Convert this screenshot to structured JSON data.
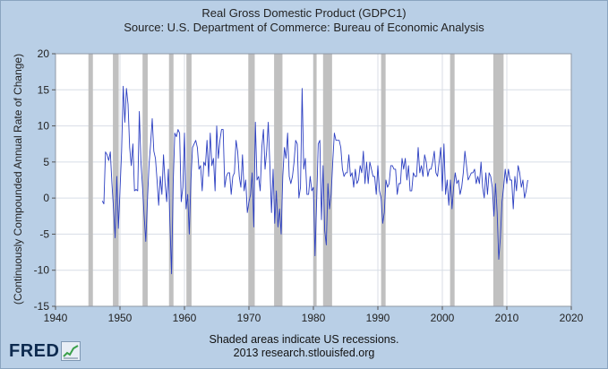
{
  "chart_data": {
    "type": "line",
    "title": "Real Gross Domestic Product (GDPC1)",
    "subtitle": "Source: U.S. Department of Commerce: Bureau of Economic Analysis",
    "xlabel": "",
    "ylabel": "(Continuously Compounded Annual Rate of Change)",
    "xlim": [
      1940,
      2020
    ],
    "ylim": [
      -15,
      20
    ],
    "x_ticks": [
      1940,
      1950,
      1960,
      1970,
      1980,
      1990,
      2000,
      2010,
      2020
    ],
    "y_ticks": [
      -15,
      -10,
      -5,
      0,
      5,
      10,
      15,
      20
    ],
    "grid": true,
    "colors": {
      "line": "#2c3fc1",
      "recession": "#c0c0c0",
      "plot_bg": "#ffffff",
      "grid": "#d8dde6"
    },
    "recessions": [
      [
        1945.1,
        1945.8
      ],
      [
        1948.9,
        1949.8
      ],
      [
        1953.5,
        1954.3
      ],
      [
        1957.6,
        1958.3
      ],
      [
        1960.3,
        1961.1
      ],
      [
        1969.9,
        1970.9
      ],
      [
        1973.9,
        1975.2
      ],
      [
        1980.0,
        1980.5
      ],
      [
        1981.5,
        1982.9
      ],
      [
        1990.5,
        1991.2
      ],
      [
        2001.2,
        2001.9
      ],
      [
        2007.9,
        2009.5
      ]
    ],
    "series": [
      {
        "values": [
          [
            1947.25,
            -0.4
          ],
          [
            1947.5,
            -0.8
          ],
          [
            1947.75,
            6.4
          ],
          [
            1948.0,
            6.0
          ],
          [
            1948.25,
            5.2
          ],
          [
            1948.5,
            6.4
          ],
          [
            1948.75,
            2.0
          ],
          [
            1949.0,
            -1.5
          ],
          [
            1949.25,
            -5.5
          ],
          [
            1949.5,
            3.0
          ],
          [
            1949.75,
            -4.2
          ],
          [
            1950.0,
            1.0
          ],
          [
            1950.25,
            6.5
          ],
          [
            1950.5,
            15.5
          ],
          [
            1950.75,
            10.5
          ],
          [
            1951.0,
            15.2
          ],
          [
            1951.25,
            13.0
          ],
          [
            1951.5,
            7.0
          ],
          [
            1951.75,
            4.5
          ],
          [
            1952.0,
            7.5
          ],
          [
            1952.25,
            1.0
          ],
          [
            1952.5,
            1.2
          ],
          [
            1952.75,
            1.0
          ],
          [
            1953.0,
            12.0
          ],
          [
            1953.25,
            5.0
          ],
          [
            1953.5,
            1.5
          ],
          [
            1953.75,
            -2.5
          ],
          [
            1954.0,
            -6.0
          ],
          [
            1954.25,
            -0.5
          ],
          [
            1954.5,
            4.5
          ],
          [
            1954.75,
            7.5
          ],
          [
            1955.0,
            11.0
          ],
          [
            1955.25,
            6.5
          ],
          [
            1955.5,
            5.5
          ],
          [
            1955.75,
            2.5
          ],
          [
            1956.0,
            -1.0
          ],
          [
            1956.25,
            3.0
          ],
          [
            1956.5,
            0.5
          ],
          [
            1956.75,
            6.0
          ],
          [
            1957.0,
            2.0
          ],
          [
            1957.25,
            -0.5
          ],
          [
            1957.5,
            4.0
          ],
          [
            1957.75,
            -3.5
          ],
          [
            1958.0,
            -10.5
          ],
          [
            1958.25,
            2.0
          ],
          [
            1958.5,
            9.0
          ],
          [
            1958.75,
            8.5
          ],
          [
            1959.0,
            9.5
          ],
          [
            1959.25,
            9.0
          ],
          [
            1959.5,
            -0.5
          ],
          [
            1959.75,
            1.5
          ],
          [
            1960.0,
            9.0
          ],
          [
            1960.25,
            -1.5
          ],
          [
            1960.5,
            0.5
          ],
          [
            1960.75,
            -5.0
          ],
          [
            1961.0,
            2.5
          ],
          [
            1961.25,
            7.0
          ],
          [
            1961.5,
            7.5
          ],
          [
            1961.75,
            8.0
          ],
          [
            1962.0,
            7.0
          ],
          [
            1962.25,
            4.0
          ],
          [
            1962.5,
            4.5
          ],
          [
            1962.75,
            1.0
          ],
          [
            1963.0,
            5.0
          ],
          [
            1963.25,
            4.5
          ],
          [
            1963.5,
            8.0
          ],
          [
            1963.75,
            3.0
          ],
          [
            1964.0,
            9.0
          ],
          [
            1964.25,
            4.5
          ],
          [
            1964.5,
            5.5
          ],
          [
            1964.75,
            1.0
          ],
          [
            1965.0,
            10.0
          ],
          [
            1965.25,
            5.5
          ],
          [
            1965.5,
            8.0
          ],
          [
            1965.75,
            9.5
          ],
          [
            1966.0,
            9.5
          ],
          [
            1966.25,
            1.5
          ],
          [
            1966.5,
            3.0
          ],
          [
            1966.75,
            3.5
          ],
          [
            1967.0,
            3.5
          ],
          [
            1967.25,
            0.5
          ],
          [
            1967.5,
            3.0
          ],
          [
            1967.75,
            3.5
          ],
          [
            1968.0,
            8.0
          ],
          [
            1968.25,
            6.5
          ],
          [
            1968.5,
            3.0
          ],
          [
            1968.75,
            1.5
          ],
          [
            1969.0,
            6.0
          ],
          [
            1969.25,
            1.0
          ],
          [
            1969.5,
            2.5
          ],
          [
            1969.75,
            -2.0
          ],
          [
            1970.0,
            -0.5
          ],
          [
            1970.25,
            0.5
          ],
          [
            1970.5,
            3.5
          ],
          [
            1970.75,
            -4.0
          ],
          [
            1971.0,
            10.5
          ],
          [
            1971.25,
            2.5
          ],
          [
            1971.5,
            3.0
          ],
          [
            1971.75,
            1.0
          ],
          [
            1972.0,
            7.0
          ],
          [
            1972.25,
            9.5
          ],
          [
            1972.5,
            4.0
          ],
          [
            1972.75,
            6.5
          ],
          [
            1973.0,
            10.5
          ],
          [
            1973.25,
            4.5
          ],
          [
            1973.5,
            -2.0
          ],
          [
            1973.75,
            4.0
          ],
          [
            1974.0,
            -3.5
          ],
          [
            1974.25,
            1.0
          ],
          [
            1974.5,
            -4.0
          ],
          [
            1974.75,
            -1.5
          ],
          [
            1975.0,
            -5.0
          ],
          [
            1975.25,
            3.0
          ],
          [
            1975.5,
            7.0
          ],
          [
            1975.75,
            5.5
          ],
          [
            1976.0,
            9.0
          ],
          [
            1976.25,
            3.0
          ],
          [
            1976.5,
            2.0
          ],
          [
            1976.75,
            3.0
          ],
          [
            1977.0,
            5.0
          ],
          [
            1977.25,
            8.0
          ],
          [
            1977.5,
            7.5
          ],
          [
            1977.75,
            0.0
          ],
          [
            1978.0,
            1.5
          ],
          [
            1978.25,
            15.2
          ],
          [
            1978.5,
            4.0
          ],
          [
            1978.75,
            5.5
          ],
          [
            1979.0,
            0.5
          ],
          [
            1979.25,
            0.5
          ],
          [
            1979.5,
            3.0
          ],
          [
            1979.75,
            1.0
          ],
          [
            1980.0,
            1.5
          ],
          [
            1980.25,
            -8.0
          ],
          [
            1980.5,
            -0.5
          ],
          [
            1980.75,
            7.5
          ],
          [
            1981.0,
            8.0
          ],
          [
            1981.25,
            -3.0
          ],
          [
            1981.5,
            4.5
          ],
          [
            1981.75,
            -4.5
          ],
          [
            1982.0,
            -6.5
          ],
          [
            1982.25,
            2.0
          ],
          [
            1982.5,
            -1.5
          ],
          [
            1982.75,
            0.5
          ],
          [
            1983.0,
            5.0
          ],
          [
            1983.25,
            9.0
          ],
          [
            1983.5,
            8.0
          ],
          [
            1983.75,
            8.0
          ],
          [
            1984.0,
            8.0
          ],
          [
            1984.25,
            7.0
          ],
          [
            1984.5,
            4.0
          ],
          [
            1984.75,
            3.0
          ],
          [
            1985.0,
            3.5
          ],
          [
            1985.25,
            3.5
          ],
          [
            1985.5,
            6.0
          ],
          [
            1985.75,
            3.0
          ],
          [
            1986.0,
            3.5
          ],
          [
            1986.25,
            1.5
          ],
          [
            1986.5,
            4.0
          ],
          [
            1986.75,
            2.0
          ],
          [
            1987.0,
            2.5
          ],
          [
            1987.25,
            4.5
          ],
          [
            1987.5,
            3.5
          ],
          [
            1987.75,
            6.5
          ],
          [
            1988.0,
            2.0
          ],
          [
            1988.25,
            5.0
          ],
          [
            1988.5,
            2.0
          ],
          [
            1988.75,
            5.0
          ],
          [
            1989.0,
            4.0
          ],
          [
            1989.25,
            3.0
          ],
          [
            1989.5,
            3.0
          ],
          [
            1989.75,
            0.5
          ],
          [
            1990.0,
            4.5
          ],
          [
            1990.25,
            1.0
          ],
          [
            1990.5,
            0.0
          ],
          [
            1990.75,
            -3.5
          ],
          [
            1991.0,
            -2.0
          ],
          [
            1991.25,
            2.5
          ],
          [
            1991.5,
            1.5
          ],
          [
            1991.75,
            2.0
          ],
          [
            1992.0,
            4.5
          ],
          [
            1992.25,
            4.5
          ],
          [
            1992.5,
            4.0
          ],
          [
            1992.75,
            4.0
          ],
          [
            1993.0,
            0.5
          ],
          [
            1993.25,
            2.0
          ],
          [
            1993.5,
            2.0
          ],
          [
            1993.75,
            5.5
          ],
          [
            1994.0,
            4.0
          ],
          [
            1994.25,
            5.5
          ],
          [
            1994.5,
            2.5
          ],
          [
            1994.75,
            4.5
          ],
          [
            1995.0,
            1.0
          ],
          [
            1995.25,
            1.0
          ],
          [
            1995.5,
            3.5
          ],
          [
            1995.75,
            3.0
          ],
          [
            1996.0,
            3.0
          ],
          [
            1996.25,
            7.0
          ],
          [
            1996.5,
            3.5
          ],
          [
            1996.75,
            4.5
          ],
          [
            1997.0,
            3.0
          ],
          [
            1997.25,
            6.0
          ],
          [
            1997.5,
            5.0
          ],
          [
            1997.75,
            3.0
          ],
          [
            1998.0,
            4.0
          ],
          [
            1998.25,
            4.0
          ],
          [
            1998.5,
            5.0
          ],
          [
            1998.75,
            6.5
          ],
          [
            1999.0,
            3.5
          ],
          [
            1999.25,
            3.0
          ],
          [
            1999.5,
            5.0
          ],
          [
            1999.75,
            7.0
          ],
          [
            2000.0,
            1.0
          ],
          [
            2000.25,
            7.5
          ],
          [
            2000.5,
            0.5
          ],
          [
            2000.75,
            2.5
          ],
          [
            2001.0,
            -1.0
          ],
          [
            2001.25,
            2.5
          ],
          [
            2001.5,
            -1.5
          ],
          [
            2001.75,
            1.5
          ],
          [
            2002.0,
            3.5
          ],
          [
            2002.25,
            2.0
          ],
          [
            2002.5,
            2.5
          ],
          [
            2002.75,
            0.5
          ],
          [
            2003.0,
            1.5
          ],
          [
            2003.25,
            3.5
          ],
          [
            2003.5,
            6.5
          ],
          [
            2003.75,
            4.5
          ],
          [
            2004.0,
            2.5
          ],
          [
            2004.25,
            3.0
          ],
          [
            2004.5,
            3.5
          ],
          [
            2004.75,
            3.5
          ],
          [
            2005.0,
            4.0
          ],
          [
            2005.25,
            2.0
          ],
          [
            2005.5,
            3.0
          ],
          [
            2005.75,
            2.0
          ],
          [
            2006.0,
            5.0
          ],
          [
            2006.25,
            1.5
          ],
          [
            2006.5,
            0.0
          ],
          [
            2006.75,
            3.5
          ],
          [
            2007.0,
            0.5
          ],
          [
            2007.25,
            3.5
          ],
          [
            2007.5,
            3.0
          ],
          [
            2007.75,
            1.5
          ],
          [
            2008.0,
            -2.5
          ],
          [
            2008.25,
            2.0
          ],
          [
            2008.5,
            -2.0
          ],
          [
            2008.75,
            -8.5
          ],
          [
            2009.0,
            -5.5
          ],
          [
            2009.25,
            -0.5
          ],
          [
            2009.5,
            1.5
          ],
          [
            2009.75,
            4.0
          ],
          [
            2010.0,
            2.0
          ],
          [
            2010.25,
            4.0
          ],
          [
            2010.5,
            2.5
          ],
          [
            2010.75,
            2.5
          ],
          [
            2011.0,
            -1.5
          ],
          [
            2011.25,
            3.0
          ],
          [
            2011.5,
            1.0
          ],
          [
            2011.75,
            4.5
          ],
          [
            2012.0,
            3.5
          ],
          [
            2012.25,
            1.5
          ],
          [
            2012.5,
            2.5
          ],
          [
            2012.75,
            0.0
          ],
          [
            2013.0,
            1.0
          ],
          [
            2013.25,
            2.5
          ]
        ]
      }
    ]
  },
  "footer": {
    "note": "Shaded areas indicate US recessions.",
    "source": "2013 research.stlouisfed.org"
  },
  "logo": {
    "text": "FRED",
    "icon": "chart-trend-icon"
  }
}
